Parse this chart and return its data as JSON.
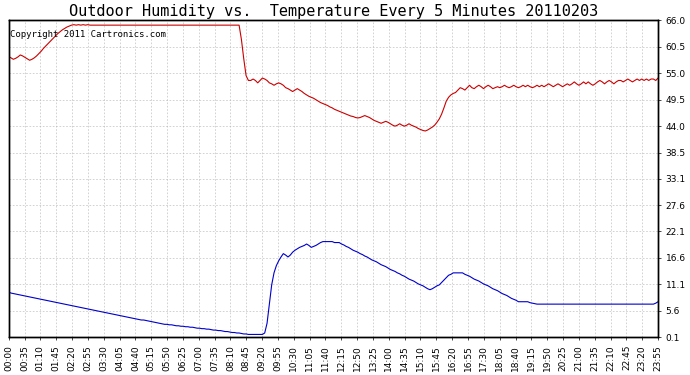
{
  "title": "Outdoor Humidity vs.  Temperature Every 5 Minutes 20110203",
  "copyright_text": "Copyright 2011 Cartronics.com",
  "background_color": "#ffffff",
  "plot_bg_color": "#ffffff",
  "grid_color": "#b0b0b0",
  "line_color_temp": "#cc0000",
  "line_color_humidity": "#0000cc",
  "right_yticks": [
    66.0,
    60.5,
    55.0,
    49.5,
    44.0,
    38.5,
    33.1,
    27.6,
    22.1,
    16.6,
    11.1,
    5.6,
    0.1
  ],
  "ylim": [
    0.1,
    66.0
  ],
  "x_tick_labels": [
    "00:00",
    "00:35",
    "01:10",
    "01:45",
    "02:20",
    "02:55",
    "03:30",
    "04:05",
    "04:40",
    "05:15",
    "05:50",
    "06:25",
    "07:00",
    "07:35",
    "08:10",
    "08:45",
    "09:20",
    "09:55",
    "10:30",
    "11:05",
    "11:40",
    "12:15",
    "12:50",
    "13:25",
    "14:00",
    "14:35",
    "15:10",
    "15:45",
    "16:20",
    "16:55",
    "17:30",
    "18:05",
    "18:40",
    "19:15",
    "19:50",
    "20:25",
    "21:00",
    "21:35",
    "22:10",
    "22:45",
    "23:20",
    "23:55"
  ],
  "title_fontsize": 11,
  "tick_fontsize": 6.5,
  "copyright_fontsize": 6.5,
  "temp_data": [
    58.5,
    58.2,
    57.9,
    58.1,
    58.4,
    58.8,
    58.6,
    58.3,
    58.0,
    57.7,
    57.9,
    58.2,
    58.6,
    59.1,
    59.6,
    60.2,
    60.7,
    61.2,
    61.7,
    62.2,
    62.7,
    63.2,
    63.6,
    64.0,
    64.3,
    64.6,
    64.8,
    65.0,
    65.1,
    65.0,
    65.1,
    65.0,
    65.1,
    65.0,
    65.1,
    65.0,
    65.0,
    65.0,
    65.0,
    65.0,
    65.0,
    65.0,
    65.0,
    65.0,
    65.0,
    65.0,
    65.0,
    65.0,
    65.0,
    65.0,
    65.0,
    65.0,
    65.0,
    65.0,
    65.0,
    65.0,
    65.0,
    65.0,
    65.0,
    65.0,
    65.0,
    65.0,
    65.0,
    65.0,
    65.0,
    65.0,
    65.0,
    65.0,
    65.0,
    65.0,
    65.0,
    65.0,
    65.0,
    65.0,
    65.0,
    65.0,
    65.0,
    65.0,
    65.0,
    65.0,
    65.0,
    65.0,
    65.0,
    65.0,
    65.0,
    65.0,
    65.0,
    65.0,
    65.0,
    65.0,
    65.0,
    65.0,
    65.0,
    65.0,
    65.0,
    65.0,
    65.0,
    65.0,
    65.0,
    65.0,
    62.0,
    58.0,
    54.5,
    53.5,
    53.5,
    53.8,
    53.5,
    53.0,
    53.5,
    54.0,
    53.8,
    53.5,
    53.0,
    52.8,
    52.5,
    52.8,
    53.0,
    52.8,
    52.5,
    52.0,
    51.8,
    51.5,
    51.2,
    51.5,
    51.8,
    51.5,
    51.2,
    50.8,
    50.5,
    50.2,
    50.0,
    49.8,
    49.5,
    49.2,
    48.9,
    48.7,
    48.5,
    48.3,
    48.0,
    47.8,
    47.5,
    47.3,
    47.1,
    46.9,
    46.7,
    46.5,
    46.3,
    46.1,
    46.0,
    45.8,
    45.7,
    45.8,
    46.0,
    46.2,
    46.0,
    45.8,
    45.5,
    45.2,
    45.0,
    44.8,
    44.6,
    44.8,
    45.0,
    44.8,
    44.5,
    44.2,
    44.0,
    44.2,
    44.5,
    44.2,
    44.0,
    44.2,
    44.5,
    44.2,
    44.0,
    43.8,
    43.5,
    43.3,
    43.1,
    43.0,
    43.2,
    43.5,
    43.8,
    44.2,
    44.8,
    45.5,
    46.5,
    47.8,
    49.2,
    50.0,
    50.5,
    50.8,
    51.0,
    51.5,
    52.0,
    51.8,
    51.5,
    52.0,
    52.5,
    52.0,
    51.8,
    52.2,
    52.5,
    52.2,
    51.8,
    52.2,
    52.5,
    52.2,
    51.8,
    52.0,
    52.2,
    52.0,
    52.2,
    52.5,
    52.2,
    52.0,
    52.2,
    52.5,
    52.2,
    52.0,
    52.2,
    52.5,
    52.2,
    52.5,
    52.2,
    52.0,
    52.2,
    52.5,
    52.2,
    52.5,
    52.2,
    52.5,
    52.8,
    52.5,
    52.2,
    52.5,
    52.8,
    52.5,
    52.2,
    52.5,
    52.8,
    52.5,
    52.8,
    53.2,
    52.8,
    52.5,
    52.8,
    53.2,
    52.8,
    53.2,
    52.8,
    52.5,
    52.8,
    53.2,
    53.5,
    53.2,
    52.8,
    53.2,
    53.5,
    53.2,
    52.8,
    53.2,
    53.5,
    53.5,
    53.2,
    53.5,
    53.8,
    53.5,
    53.2,
    53.5,
    53.8,
    53.5,
    53.8,
    53.5,
    53.8,
    53.5,
    53.8,
    53.8,
    53.5,
    54.0
  ],
  "humidity_data": [
    9.5,
    9.3,
    9.2,
    9.1,
    9.0,
    8.9,
    8.8,
    8.7,
    8.6,
    8.5,
    8.4,
    8.3,
    8.2,
    8.1,
    8.0,
    7.9,
    7.8,
    7.7,
    7.6,
    7.5,
    7.4,
    7.3,
    7.2,
    7.1,
    7.0,
    6.9,
    6.8,
    6.7,
    6.6,
    6.5,
    6.4,
    6.3,
    6.2,
    6.1,
    6.0,
    5.9,
    5.8,
    5.7,
    5.6,
    5.5,
    5.4,
    5.3,
    5.2,
    5.1,
    5.0,
    4.9,
    4.8,
    4.7,
    4.6,
    4.5,
    4.4,
    4.3,
    4.2,
    4.1,
    4.0,
    3.9,
    3.8,
    3.7,
    3.7,
    3.6,
    3.5,
    3.4,
    3.3,
    3.2,
    3.1,
    3.0,
    2.9,
    2.8,
    2.8,
    2.7,
    2.7,
    2.6,
    2.5,
    2.5,
    2.4,
    2.4,
    2.3,
    2.3,
    2.2,
    2.2,
    2.1,
    2.0,
    2.0,
    1.9,
    1.9,
    1.8,
    1.8,
    1.7,
    1.6,
    1.6,
    1.5,
    1.5,
    1.4,
    1.3,
    1.3,
    1.2,
    1.1,
    1.1,
    1.0,
    1.0,
    0.9,
    0.8,
    0.8,
    0.7,
    0.7,
    0.7,
    0.7,
    0.7,
    0.7,
    0.7,
    1.0,
    3.0,
    7.0,
    11.0,
    13.5,
    15.0,
    16.0,
    16.8,
    17.5,
    17.2,
    16.8,
    17.2,
    17.8,
    18.2,
    18.5,
    18.8,
    19.0,
    19.2,
    19.5,
    19.2,
    18.8,
    19.0,
    19.2,
    19.5,
    19.8,
    20.0,
    20.0,
    20.0,
    20.0,
    20.0,
    19.8,
    19.8,
    19.8,
    19.5,
    19.3,
    19.0,
    18.8,
    18.5,
    18.2,
    18.0,
    17.8,
    17.5,
    17.3,
    17.0,
    16.8,
    16.5,
    16.2,
    16.0,
    15.8,
    15.5,
    15.2,
    15.0,
    14.8,
    14.5,
    14.2,
    14.0,
    13.8,
    13.5,
    13.3,
    13.0,
    12.8,
    12.5,
    12.2,
    12.0,
    11.8,
    11.5,
    11.2,
    11.0,
    10.8,
    10.5,
    10.2,
    10.0,
    10.2,
    10.5,
    10.8,
    11.0,
    11.5,
    12.0,
    12.5,
    13.0,
    13.2,
    13.5,
    13.5,
    13.5,
    13.5,
    13.5,
    13.2,
    13.0,
    12.8,
    12.5,
    12.2,
    12.0,
    11.8,
    11.5,
    11.2,
    11.0,
    10.8,
    10.5,
    10.2,
    10.0,
    9.8,
    9.5,
    9.2,
    9.0,
    8.8,
    8.5,
    8.2,
    8.0,
    7.8,
    7.5,
    7.5,
    7.5,
    7.5,
    7.5,
    7.3,
    7.2,
    7.1,
    7.0,
    7.0,
    7.0,
    7.0,
    7.0,
    7.0,
    7.0,
    7.0,
    7.0,
    7.0,
    7.0,
    7.0,
    7.0,
    7.0,
    7.0,
    7.0,
    7.0,
    7.0,
    7.0,
    7.0,
    7.0,
    7.0,
    7.0,
    7.0,
    7.0,
    7.0,
    7.0,
    7.0,
    7.0,
    7.0,
    7.0,
    7.0,
    7.0,
    7.0,
    7.0,
    7.0,
    7.0,
    7.0,
    7.0,
    7.0,
    7.0,
    7.0,
    7.0,
    7.0,
    7.0,
    7.0,
    7.0,
    7.0,
    7.0,
    7.0,
    7.0,
    7.2,
    7.5
  ]
}
